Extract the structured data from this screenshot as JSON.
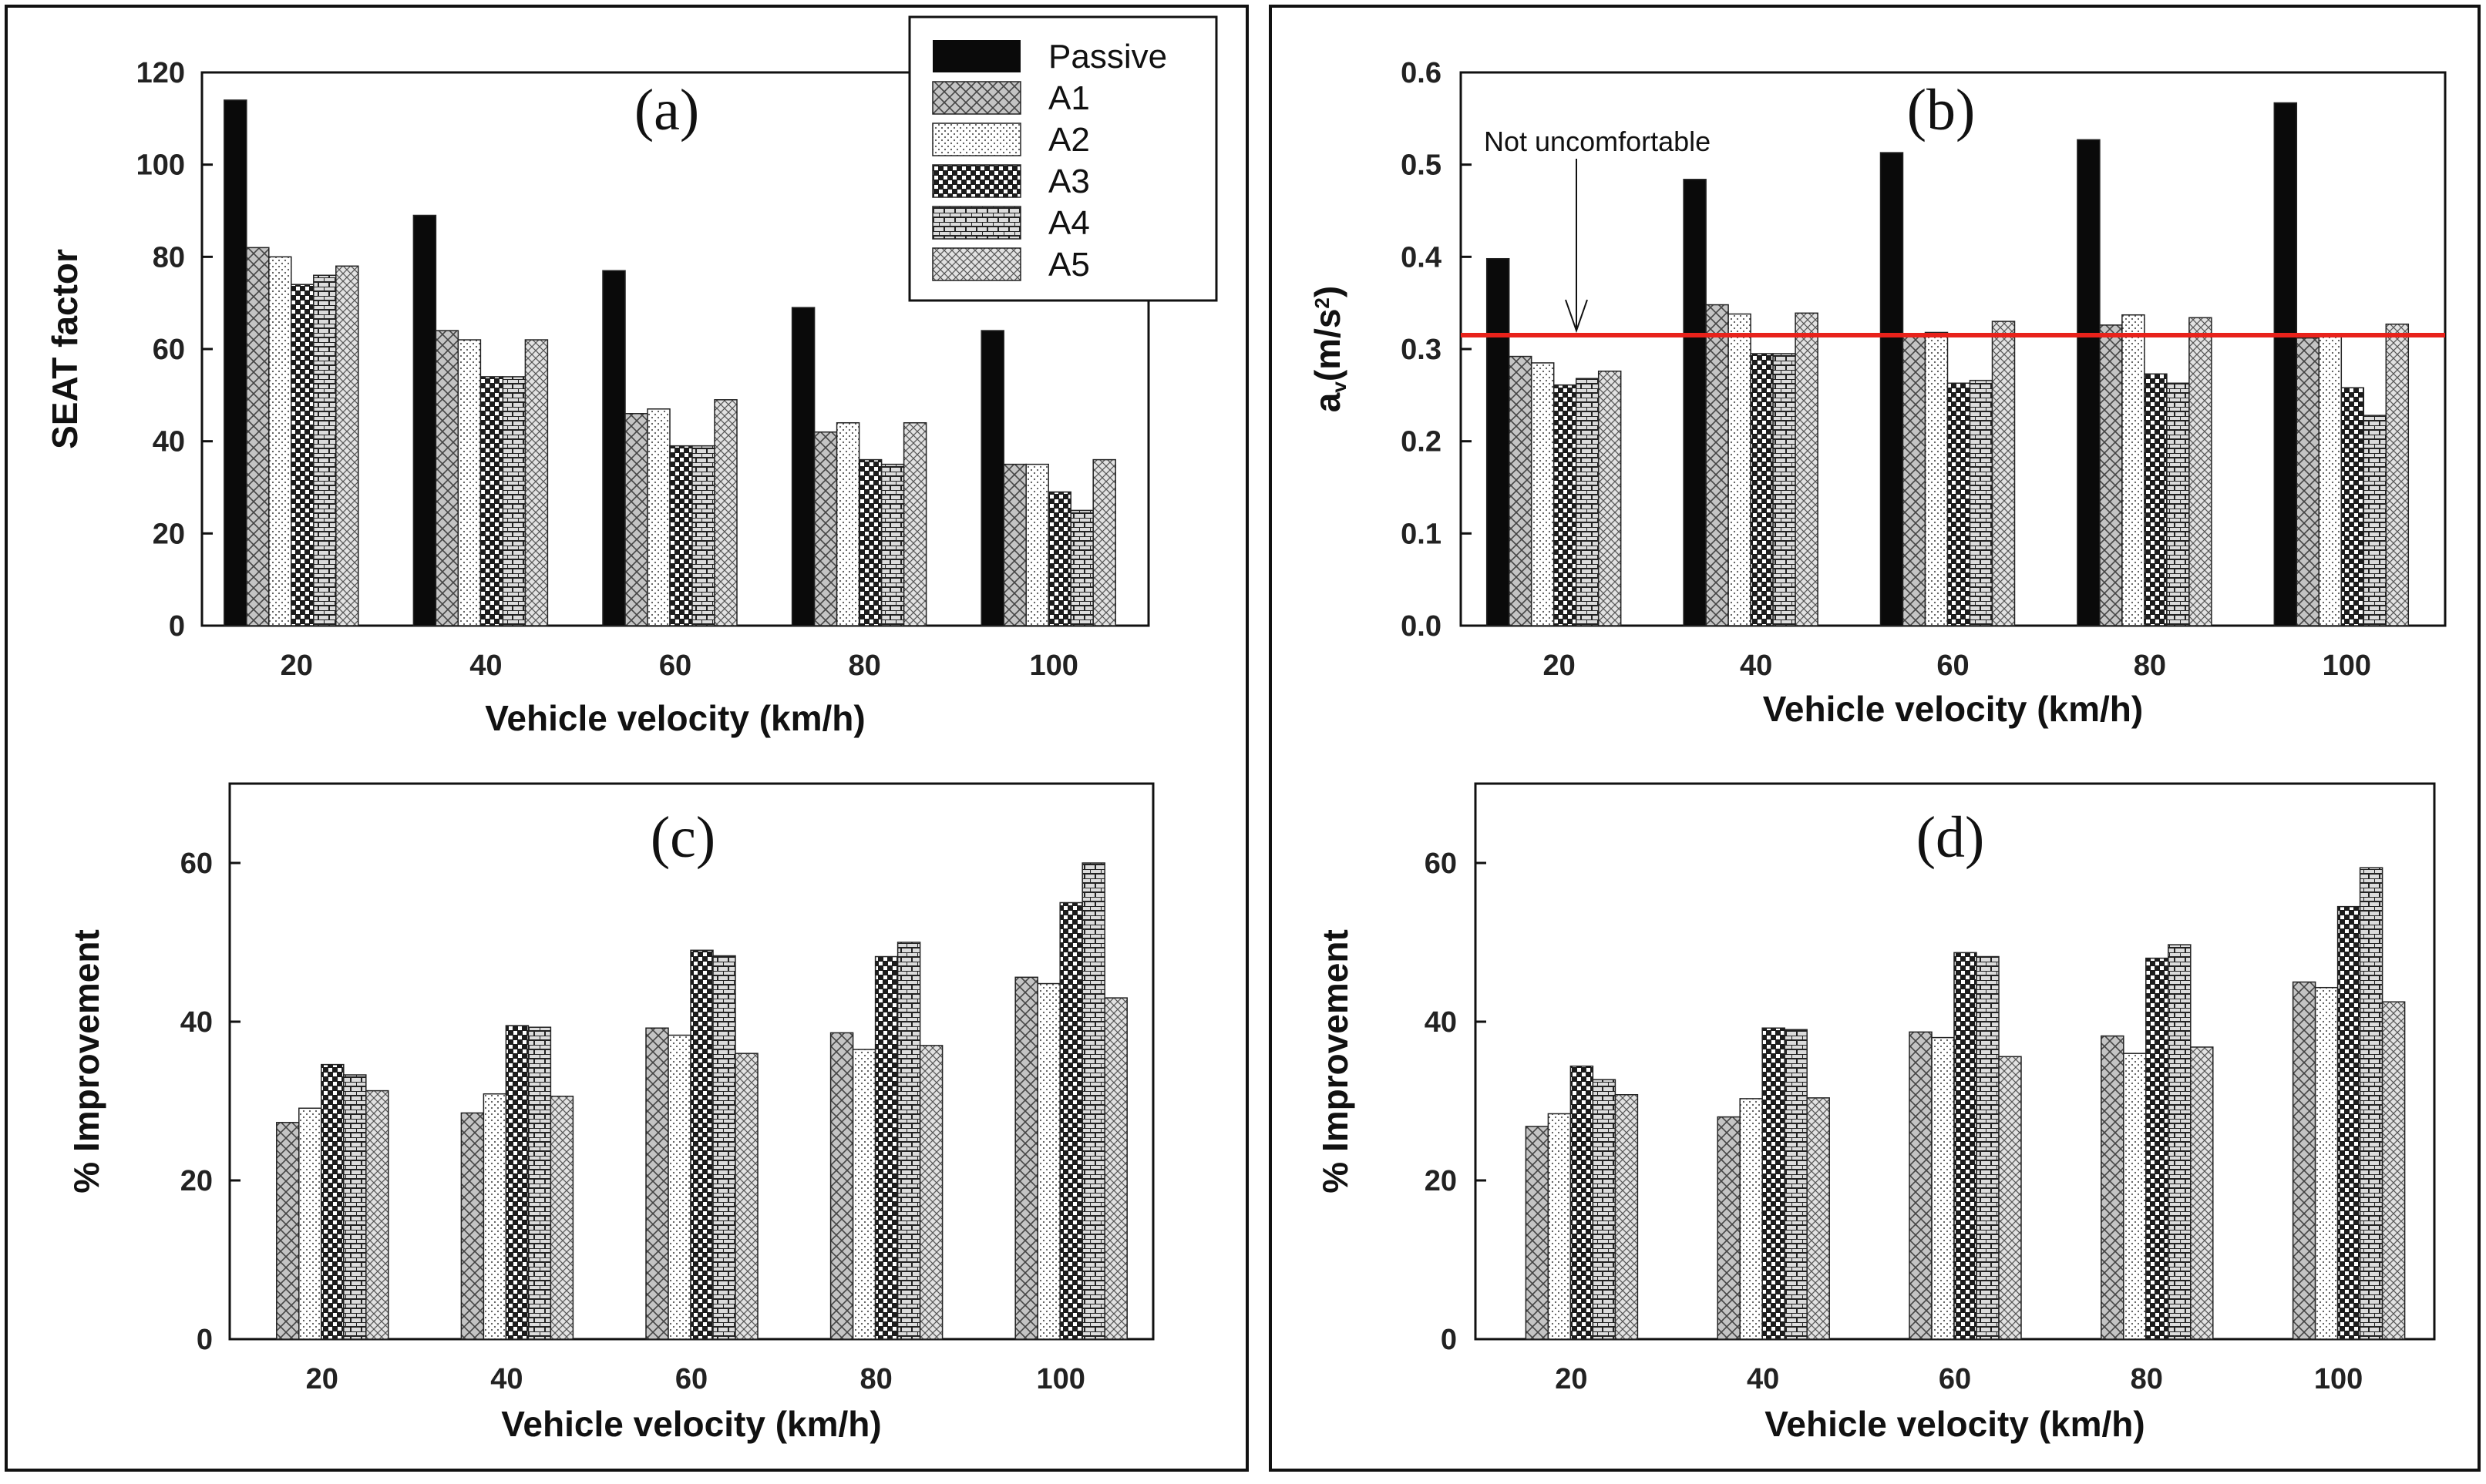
{
  "legend": {
    "entries": [
      "Passive",
      "A1",
      "A2",
      "A3",
      "A4",
      "A5"
    ],
    "series_colors": [
      "#0a0a0a",
      "#c4c4c4",
      "#ffffff",
      "#1c1c1c",
      "#dcdcdc",
      "#e2e2e2"
    ]
  },
  "reference_line_color": "#e8221b",
  "chart_data": [
    {
      "type": "bar",
      "panel_label": "(a)",
      "categories": [
        "20",
        "40",
        "60",
        "80",
        "100"
      ],
      "series": [
        {
          "name": "Passive",
          "values": [
            114,
            89,
            77,
            69,
            64
          ]
        },
        {
          "name": "A1",
          "values": [
            82,
            64,
            46,
            42,
            35
          ]
        },
        {
          "name": "A2",
          "values": [
            80,
            62,
            47,
            44,
            35
          ]
        },
        {
          "name": "A3",
          "values": [
            74,
            54,
            39,
            36,
            29
          ]
        },
        {
          "name": "A4",
          "values": [
            76,
            54,
            39,
            35,
            25
          ]
        },
        {
          "name": "A5",
          "values": [
            78,
            62,
            49,
            44,
            36
          ]
        }
      ],
      "xlabel": "Vehicle velocity (km/h)",
      "ylabel": "SEAT factor",
      "ylim": [
        0,
        120
      ],
      "yticks": [
        "0",
        "20",
        "40",
        "60",
        "80",
        "100",
        "120"
      ]
    },
    {
      "type": "bar",
      "panel_label": "(b)",
      "categories": [
        "20",
        "40",
        "60",
        "80",
        "100"
      ],
      "series": [
        {
          "name": "Passive",
          "values": [
            0.398,
            0.484,
            0.513,
            0.527,
            0.567
          ]
        },
        {
          "name": "A1",
          "values": [
            0.292,
            0.348,
            0.315,
            0.326,
            0.312
          ]
        },
        {
          "name": "A2",
          "values": [
            0.285,
            0.338,
            0.318,
            0.337,
            0.316
          ]
        },
        {
          "name": "A3",
          "values": [
            0.261,
            0.295,
            0.263,
            0.273,
            0.258
          ]
        },
        {
          "name": "A4",
          "values": [
            0.268,
            0.295,
            0.266,
            0.263,
            0.228
          ]
        },
        {
          "name": "A5",
          "values": [
            0.276,
            0.339,
            0.33,
            0.334,
            0.327
          ]
        }
      ],
      "xlabel": "Vehicle velocity (km/h)",
      "ylabel": "a",
      "ylabel_subscript": "v",
      "ylabel_unit": "(m/s",
      "ylabel_superscript": "2",
      "ylabel_close": ")",
      "ylim": [
        0,
        0.6
      ],
      "yticks": [
        "0.0",
        "0.1",
        "0.2",
        "0.3",
        "0.4",
        "0.5",
        "0.6"
      ],
      "reference_line": {
        "value": 0.315,
        "label": "Not uncomfortable"
      }
    },
    {
      "type": "bar",
      "panel_label": "(c)",
      "categories": [
        "20",
        "40",
        "60",
        "80",
        "100"
      ],
      "series": [
        {
          "name": "A1",
          "values": [
            27.3,
            28.5,
            39.2,
            38.6,
            45.6
          ]
        },
        {
          "name": "A2",
          "values": [
            29.1,
            30.9,
            38.3,
            36.5,
            44.8
          ]
        },
        {
          "name": "A3",
          "values": [
            34.6,
            39.5,
            49.0,
            48.2,
            55.0
          ]
        },
        {
          "name": "A4",
          "values": [
            33.3,
            39.3,
            48.3,
            50.0,
            60.0
          ]
        },
        {
          "name": "A5",
          "values": [
            31.3,
            30.6,
            36.0,
            37.0,
            43.0
          ]
        }
      ],
      "xlabel": "Vehicle velocity (km/h)",
      "ylabel": "% Improvement",
      "ylim": [
        0,
        70
      ],
      "yticks": [
        "0",
        "20",
        "40",
        "60"
      ]
    },
    {
      "type": "bar",
      "panel_label": "(d)",
      "categories": [
        "20",
        "40",
        "60",
        "80",
        "100"
      ],
      "series": [
        {
          "name": "A1",
          "values": [
            26.8,
            28.0,
            38.7,
            38.2,
            45.0
          ]
        },
        {
          "name": "A2",
          "values": [
            28.4,
            30.3,
            38.0,
            36.0,
            44.3
          ]
        },
        {
          "name": "A3",
          "values": [
            34.4,
            39.2,
            48.7,
            48.0,
            54.5
          ]
        },
        {
          "name": "A4",
          "values": [
            32.7,
            39.0,
            48.2,
            49.7,
            59.4
          ]
        },
        {
          "name": "A5",
          "values": [
            30.8,
            30.4,
            35.6,
            36.8,
            42.5
          ]
        }
      ],
      "xlabel": "Vehicle velocity (km/h)",
      "ylabel": "% Improvement",
      "ylim": [
        0,
        70
      ],
      "yticks": [
        "0",
        "20",
        "40",
        "60"
      ]
    }
  ]
}
